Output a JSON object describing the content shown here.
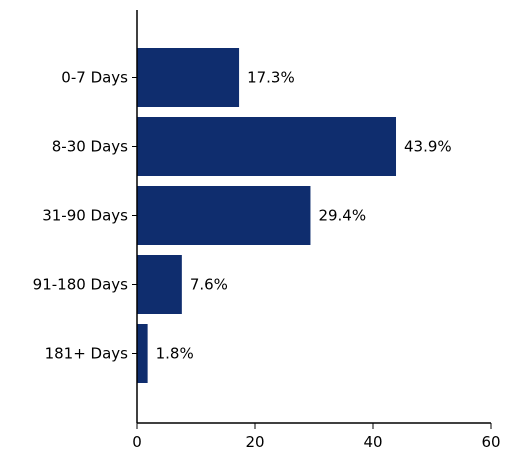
{
  "chart_data": {
    "type": "bar",
    "orientation": "horizontal",
    "title": "",
    "xlabel": "",
    "ylabel": "",
    "categories": [
      "0-7 Days",
      "8-30 Days",
      "31-90 Days",
      "91-180 Days",
      "181+ Days"
    ],
    "values": [
      17.3,
      43.9,
      29.4,
      7.6,
      1.8
    ],
    "data_labels": [
      "17.3%",
      "43.9%",
      "29.4%",
      "7.6%",
      "1.8%"
    ],
    "xlim": [
      0,
      60
    ],
    "x_ticks": [
      0,
      20,
      40,
      60
    ],
    "grid": false,
    "legend": "none",
    "bar_color": "#0f2d6e"
  }
}
